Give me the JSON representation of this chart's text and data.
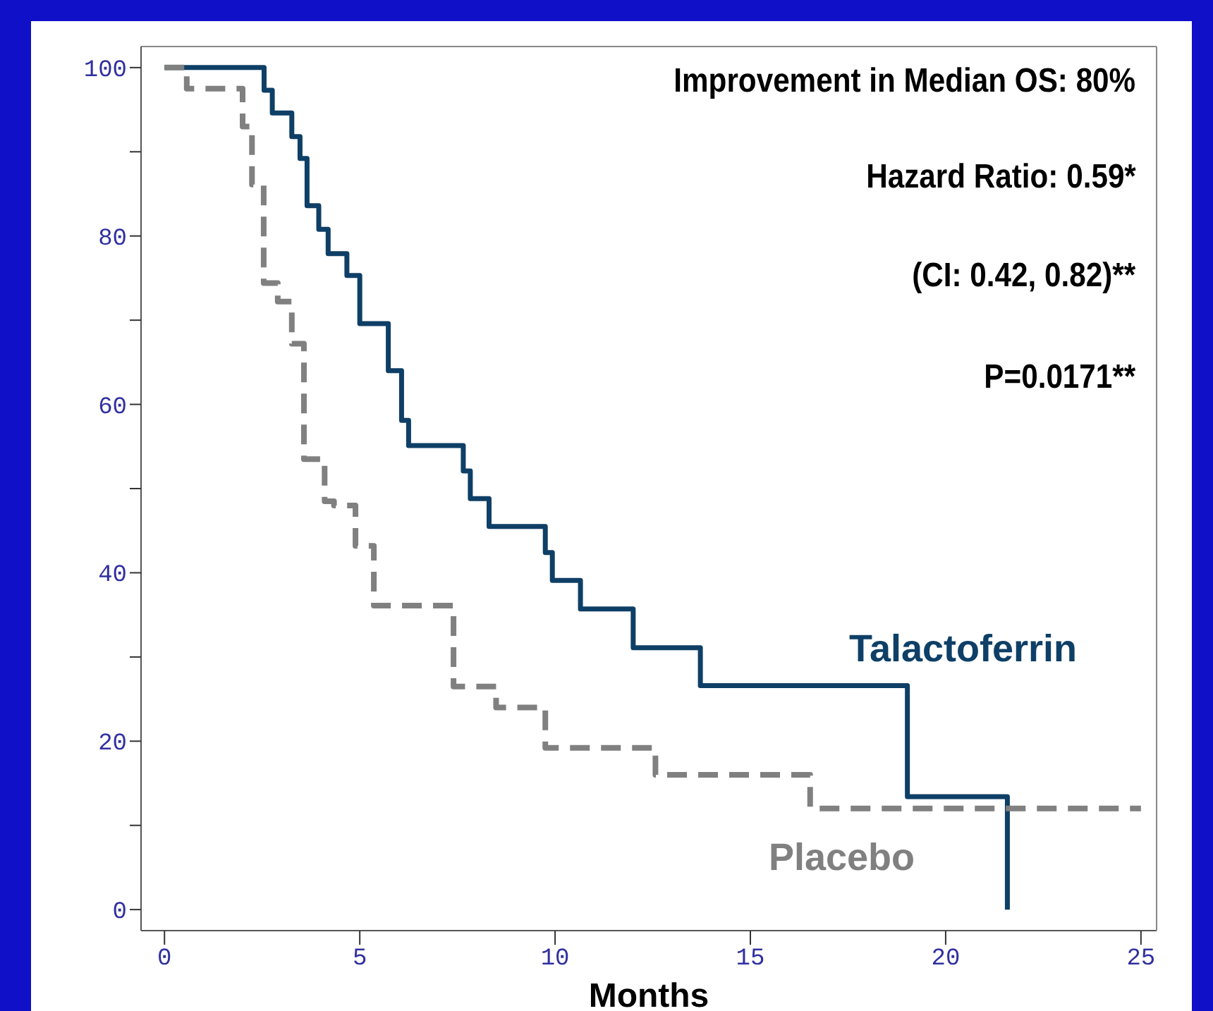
{
  "chart_data": {
    "type": "step",
    "xlabel": "Months",
    "xlim": [
      -0.6,
      25.4
    ],
    "xticks": [
      0,
      5,
      10,
      15,
      20,
      25
    ],
    "ylim": [
      -2.5,
      102.5
    ],
    "yticks": [
      0,
      {
        "value": 10,
        "label": null
      },
      20,
      {
        "value": 30,
        "label": null
      },
      40,
      {
        "value": 50,
        "label": null
      },
      60,
      {
        "value": 70,
        "label": null
      },
      80,
      {
        "value": 90,
        "label": null
      },
      100
    ],
    "marker": "none",
    "annotations": [
      "Improvement in Median OS: 80%",
      "Hazard Ratio: 0.59*",
      "(CI: 0.42, 0.82)**",
      "P=0.0171**"
    ],
    "series": [
      {
        "name": "Talactoferrin",
        "color": "#0e3f66",
        "line_style": "solid",
        "x": [
          0,
          2.55,
          2.76,
          3.26,
          3.47,
          3.65,
          3.95,
          4.19,
          4.67,
          5.0,
          5.73,
          6.07,
          6.25,
          7.65,
          7.83,
          8.31,
          9.75,
          9.93,
          10.65,
          12.0,
          13.72,
          19.02,
          21.58,
          21.58
        ],
        "values": [
          100,
          97.3,
          94.6,
          91.8,
          89.2,
          83.6,
          80.8,
          77.9,
          75.3,
          69.6,
          64.0,
          58.1,
          55.1,
          52.1,
          48.8,
          45.5,
          42.4,
          39.1,
          35.7,
          31.1,
          26.6,
          13.4,
          0,
          0
        ]
      },
      {
        "name": "Placebo",
        "color": "#808080",
        "line_style": "dashed",
        "x": [
          0,
          0.57,
          2.0,
          2.24,
          2.54,
          2.9,
          3.26,
          3.57,
          4.1,
          4.34,
          4.89,
          5.36,
          7.4,
          8.49,
          9.75,
          12.57,
          16.53,
          25
        ],
        "values": [
          100,
          97.5,
          93,
          86.1,
          74.4,
          72.2,
          67.2,
          53.5,
          48.5,
          48.0,
          43.2,
          36.1,
          26.5,
          24.0,
          19.2,
          16.0,
          12.0,
          12.0
        ]
      }
    ]
  }
}
